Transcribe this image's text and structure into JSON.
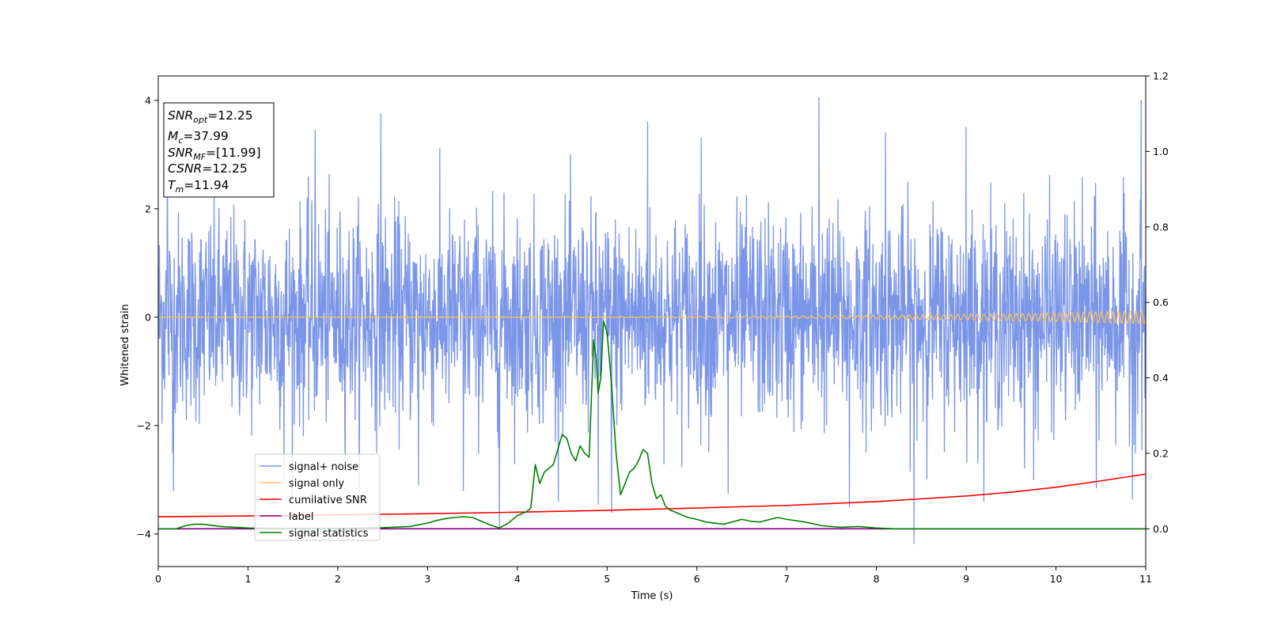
{
  "chart_data": {
    "type": "line",
    "xlabel": "Time (s)",
    "ylabel": "Whitened strain",
    "xlim": [
      0,
      11
    ],
    "ylim": [
      -4.6,
      4.45
    ],
    "y2lim": [
      -0.1,
      1.2
    ],
    "xticks": [
      "0",
      "1",
      "2",
      "3",
      "4",
      "5",
      "6",
      "7",
      "8",
      "9",
      "10",
      "11"
    ],
    "yticks": [
      "-4",
      "-2",
      "0",
      "2",
      "4"
    ],
    "y2ticks": [
      "0.0",
      "0.2",
      "0.4",
      "0.6",
      "0.8",
      "1.0",
      "1.2"
    ],
    "grid": false,
    "legend_position": "lower-left",
    "annotation_box": {
      "lines": [
        {
          "base": "SNR",
          "sub": "opt",
          "value": "=12.25"
        },
        {
          "base": "M",
          "sub": "c",
          "value": "=37.99"
        },
        {
          "base": "SNR",
          "sub": "MF",
          "value": "=[11.99]"
        },
        {
          "base": "CSNR",
          "sub": "",
          "value": "=12.25"
        },
        {
          "base": "T",
          "sub": "m",
          "value": "=11.94"
        }
      ]
    },
    "series": [
      {
        "name": "signal+ noise",
        "color": "#7b96e8",
        "axis": "left",
        "noise": {
          "std": 0.95,
          "x_start": 0,
          "x_end": 11,
          "samples": 2600
        },
        "spikes": [
          {
            "x": 7.36,
            "y": 4.05
          },
          {
            "x": 10.95,
            "y": 4.0
          },
          {
            "x": 2.48,
            "y": 3.75
          },
          {
            "x": 1.75,
            "y": 3.45
          },
          {
            "x": 0.1,
            "y": 3.3
          },
          {
            "x": 9.0,
            "y": 3.5
          },
          {
            "x": 5.45,
            "y": 3.6
          },
          {
            "x": 2.9,
            "y": 3.55
          },
          {
            "x": 8.42,
            "y": -4.18
          },
          {
            "x": 3.8,
            "y": -3.9
          },
          {
            "x": 0.17,
            "y": -3.2
          },
          {
            "x": 5.05,
            "y": -3.6
          },
          {
            "x": 10.45,
            "y": -3.15
          },
          {
            "x": 7.7,
            "y": -3.5
          },
          {
            "x": 2.9,
            "y": -3.1
          },
          {
            "x": 1.4,
            "y": -3.0
          },
          {
            "x": 6.35,
            "y": -3.25
          },
          {
            "x": 4.9,
            "y": -3.45
          },
          {
            "x": 10.85,
            "y": -3.35
          },
          {
            "x": 4.49,
            "y": 0.65
          },
          {
            "x": 3.4,
            "y": -3.2
          },
          {
            "x": 9.75,
            "y": -3.0
          },
          {
            "x": 6.05,
            "y": 3.3
          },
          {
            "x": 8.1,
            "y": 3.4
          }
        ]
      },
      {
        "name": "signal only",
        "color": "#ffc060",
        "axis": "left",
        "chirp": {
          "x_end": 11,
          "amp_max": 0.12,
          "f_start": 2,
          "f_end": 9
        }
      },
      {
        "name": "cumilative SNR",
        "color": "#ff0000",
        "axis": "right",
        "x": [
          0,
          1,
          2,
          3,
          4,
          5,
          6,
          7,
          8,
          9,
          9.5,
          10,
          10.5,
          11
        ],
        "values": [
          0.032,
          0.034,
          0.037,
          0.04,
          0.044,
          0.049,
          0.055,
          0.062,
          0.072,
          0.087,
          0.097,
          0.11,
          0.127,
          0.145
        ]
      },
      {
        "name": "label",
        "color": "#800080",
        "axis": "right",
        "x": [
          0,
          11
        ],
        "values": [
          0.0,
          0.0
        ]
      },
      {
        "name": "signal statistics",
        "color": "#008000",
        "axis": "right",
        "x": [
          0,
          0.2,
          0.3,
          0.4,
          0.5,
          0.7,
          1.0,
          1.5,
          2.0,
          2.5,
          2.8,
          3.0,
          3.1,
          3.2,
          3.3,
          3.4,
          3.5,
          3.6,
          3.7,
          3.8,
          3.9,
          4.0,
          4.1,
          4.15,
          4.2,
          4.25,
          4.3,
          4.4,
          4.5,
          4.55,
          4.6,
          4.65,
          4.7,
          4.75,
          4.8,
          4.85,
          4.88,
          4.9,
          4.93,
          4.96,
          5.0,
          5.05,
          5.1,
          5.15,
          5.2,
          5.25,
          5.3,
          5.35,
          5.4,
          5.45,
          5.5,
          5.55,
          5.6,
          5.65,
          5.7,
          5.8,
          5.9,
          6.0,
          6.1,
          6.3,
          6.5,
          6.6,
          6.7,
          6.8,
          6.9,
          7.0,
          7.2,
          7.4,
          7.6,
          7.8,
          8.0,
          8.2,
          9.0,
          10.0,
          11.0
        ],
        "values": [
          0.0,
          0.0,
          0.008,
          0.012,
          0.012,
          0.006,
          0.002,
          0.001,
          0.001,
          0.003,
          0.006,
          0.015,
          0.022,
          0.027,
          0.03,
          0.032,
          0.03,
          0.02,
          0.01,
          0.002,
          0.015,
          0.035,
          0.045,
          0.055,
          0.17,
          0.12,
          0.15,
          0.17,
          0.25,
          0.24,
          0.2,
          0.18,
          0.22,
          0.2,
          0.19,
          0.5,
          0.45,
          0.36,
          0.4,
          0.55,
          0.52,
          0.38,
          0.2,
          0.09,
          0.12,
          0.15,
          0.16,
          0.18,
          0.21,
          0.2,
          0.12,
          0.08,
          0.09,
          0.06,
          0.05,
          0.04,
          0.03,
          0.025,
          0.018,
          0.012,
          0.025,
          0.02,
          0.018,
          0.024,
          0.03,
          0.025,
          0.018,
          0.008,
          0.004,
          0.006,
          0.002,
          0.0,
          0.0,
          0.0,
          0.0
        ]
      }
    ]
  }
}
